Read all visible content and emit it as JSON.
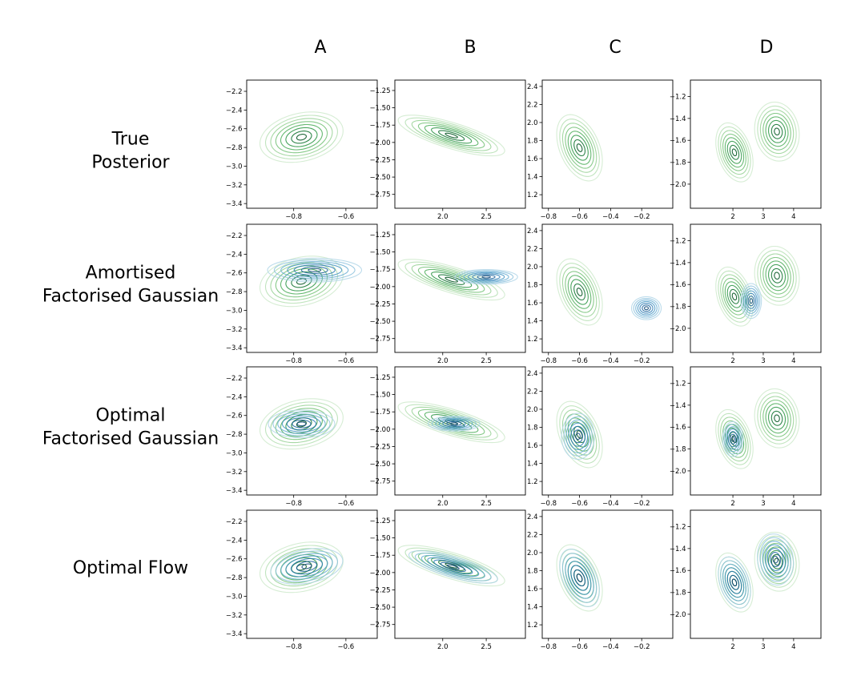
{
  "chart_data": {
    "type": "contour-grid",
    "columns": [
      "A",
      "B",
      "C",
      "D"
    ],
    "rows": [
      {
        "label_lines": [
          "True",
          "Posterior"
        ],
        "method": "true"
      },
      {
        "label_lines": [
          "Amortised",
          "Factorised Gaussian"
        ],
        "method": "amortised-fg"
      },
      {
        "label_lines": [
          "Optimal",
          "Factorised Gaussian"
        ],
        "method": "optimal-fg"
      },
      {
        "label_lines": [
          "Optimal Flow"
        ],
        "method": "optimal-flow"
      }
    ],
    "colors": {
      "true_posterior": "#3a9a4a",
      "approximation": "#2b7bb9"
    },
    "panels": [
      {
        "id": "A",
        "xlim": [
          -0.98,
          -0.48
        ],
        "ylim": [
          -3.45,
          -2.08
        ],
        "xticks": [
          -0.8,
          -0.6
        ],
        "xtick_labels": [
          "−0.8",
          "−0.6"
        ],
        "yticks": [
          -2.2,
          -2.4,
          -2.6,
          -2.8,
          -3.0,
          -3.2,
          -3.4
        ],
        "ytick_labels": [
          "−2.2",
          "−2.4",
          "−2.6",
          "−2.8",
          "−3.0",
          "−3.2",
          "−3.4"
        ],
        "true": [
          {
            "cx": -0.77,
            "cy": -2.69,
            "sx": 0.065,
            "sy": 0.11,
            "rho": 0.25
          }
        ],
        "approx": {
          "amortised-fg": [
            {
              "cx": -0.72,
              "cy": -2.57,
              "sx": 0.085,
              "sy": 0.06,
              "rho": 0.0
            }
          ],
          "optimal-fg": [
            {
              "cx": -0.77,
              "cy": -2.69,
              "sx": 0.06,
              "sy": 0.07,
              "rho": 0.0
            }
          ],
          "optimal-flow": [
            {
              "cx": -0.75,
              "cy": -2.68,
              "sx": 0.065,
              "sy": 0.09,
              "rho": 0.3
            }
          ]
        }
      },
      {
        "id": "B",
        "xlim": [
          1.45,
          2.95
        ],
        "ylim": [
          -2.95,
          -1.1
        ],
        "xticks": [
          2.0,
          2.5
        ],
        "xtick_labels": [
          "2.0",
          "2.5"
        ],
        "yticks": [
          -1.25,
          -1.5,
          -1.75,
          -2.0,
          -2.25,
          -2.5,
          -2.75
        ],
        "ytick_labels": [
          "−1.25",
          "−1.50",
          "−1.75",
          "−2.00",
          "−2.25",
          "−2.50",
          "−2.75"
        ],
        "true": [
          {
            "cx": 2.1,
            "cy": -1.9,
            "sx": 0.25,
            "sy": 0.12,
            "rho": -0.75
          }
        ],
        "approx": {
          "amortised-fg": [
            {
              "cx": 2.5,
              "cy": -1.86,
              "sx": 0.17,
              "sy": 0.05,
              "rho": 0.0
            }
          ],
          "optimal-fg": [
            {
              "cx": 2.13,
              "cy": -1.92,
              "sx": 0.14,
              "sy": 0.05,
              "rho": 0.0
            }
          ],
          "optimal-flow": [
            {
              "cx": 2.12,
              "cy": -1.92,
              "sx": 0.24,
              "sy": 0.11,
              "rho": -0.75
            }
          ]
        }
      },
      {
        "id": "C",
        "xlim": [
          -0.84,
          0.0
        ],
        "ylim": [
          1.05,
          2.47
        ],
        "xticks": [
          -0.8,
          -0.6,
          -0.4,
          -0.2
        ],
        "xtick_labels": [
          "−0.8",
          "−0.6",
          "−0.4",
          "−0.2"
        ],
        "yticks": [
          1.2,
          1.4,
          1.6,
          1.8,
          2.0,
          2.2,
          2.4
        ],
        "ytick_labels": [
          "1.2",
          "1.4",
          "1.6",
          "1.8",
          "2.0",
          "2.2",
          "2.4"
        ],
        "true": [
          {
            "cx": -0.6,
            "cy": 1.72,
            "sx": 0.06,
            "sy": 0.15,
            "rho": -0.4
          }
        ],
        "approx": {
          "amortised-fg": [
            {
              "cx": -0.17,
              "cy": 1.54,
              "sx": 0.045,
              "sy": 0.06,
              "rho": 0.0
            }
          ],
          "optimal-fg": [
            {
              "cx": -0.61,
              "cy": 1.7,
              "sx": 0.05,
              "sy": 0.12,
              "rho": 0.0
            }
          ],
          "optimal-flow": [
            {
              "cx": -0.6,
              "cy": 1.72,
              "sx": 0.06,
              "sy": 0.15,
              "rho": -0.45
            }
          ]
        }
      },
      {
        "id": "D",
        "xlim": [
          0.6,
          4.9
        ],
        "ylim": [
          -2.22,
          -1.05
        ],
        "xticks": [
          2,
          3,
          4
        ],
        "xtick_labels": [
          "2",
          "3",
          "4"
        ],
        "yticks": [
          -1.2,
          -1.4,
          -1.6,
          -1.8,
          -2.0
        ],
        "ytick_labels": [
          "−1.2",
          "−1.4",
          "−1.6",
          "−1.8",
          "−2.0"
        ],
        "true": [
          {
            "cx": 2.05,
            "cy": -1.71,
            "sx": 0.25,
            "sy": 0.11,
            "rho": -0.35
          },
          {
            "cx": 3.45,
            "cy": -1.52,
            "sx": 0.3,
            "sy": 0.11,
            "rho": -0.1
          }
        ],
        "approx": {
          "amortised-fg": [
            {
              "cx": 2.6,
              "cy": -1.75,
              "sx": 0.16,
              "sy": 0.075,
              "rho": 0.0
            }
          ],
          "optimal-fg": [
            {
              "cx": 2.0,
              "cy": -1.71,
              "sx": 0.16,
              "sy": 0.075,
              "rho": 0.0
            }
          ],
          "optimal-flow": [
            {
              "cx": 2.05,
              "cy": -1.71,
              "sx": 0.25,
              "sy": 0.11,
              "rho": -0.35
            },
            {
              "cx": 3.4,
              "cy": -1.5,
              "sx": 0.28,
              "sy": 0.11,
              "rho": -0.1
            }
          ]
        }
      }
    ]
  }
}
